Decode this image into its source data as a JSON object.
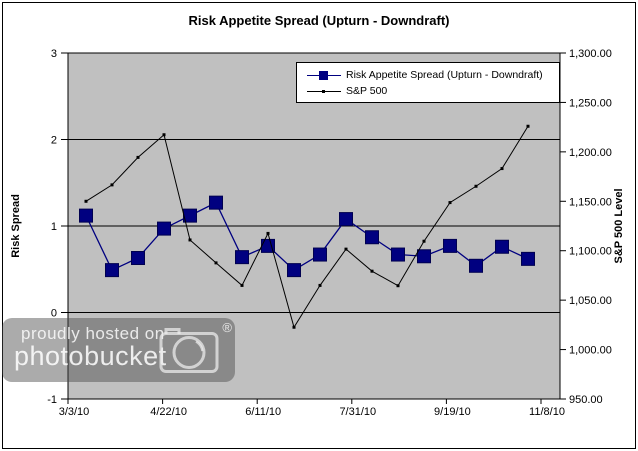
{
  "figure": {
    "title": "Risk Appetite Spread (Upturn - Downdraft)"
  },
  "chart_data": {
    "type": "line",
    "title": "Risk Appetite Spread (Upturn - Downdraft)",
    "plot_bg": "#C0C0C0",
    "grid": true,
    "x": [
      "3/12/10",
      "3/26/10",
      "4/9/10",
      "4/23/10",
      "5/7/10",
      "5/21/10",
      "6/4/10",
      "6/18/10",
      "7/2/10",
      "7/16/10",
      "7/30/10",
      "8/13/10",
      "8/27/10",
      "9/10/10",
      "9/24/10",
      "10/8/10",
      "10/22/10",
      "11/5/10"
    ],
    "series": [
      {
        "name": "Risk Appetite Spread (Upturn - Downdraft)",
        "axis": "left",
        "color": "#000080",
        "marker": "square",
        "values": [
          1.12,
          0.49,
          0.63,
          0.97,
          1.12,
          1.27,
          0.64,
          0.77,
          0.49,
          0.67,
          1.08,
          0.87,
          0.67,
          0.65,
          0.77,
          0.54,
          0.76,
          0.62
        ]
      },
      {
        "name": "S&P 500",
        "axis": "right",
        "color": "#000000",
        "marker": "dot",
        "values": [
          1150.0,
          1166.6,
          1194.4,
          1217.3,
          1110.9,
          1087.7,
          1064.9,
          1117.5,
          1022.6,
          1064.9,
          1101.6,
          1079.3,
          1064.6,
          1109.6,
          1148.7,
          1165.2,
          1183.1,
          1225.9
        ]
      }
    ],
    "left_axis": {
      "label": "Risk Spread",
      "min": -1,
      "max": 3,
      "ticks": [
        "3",
        "2",
        "1",
        "0",
        "-1"
      ]
    },
    "right_axis": {
      "label": "S&P 500 Level",
      "min": 950,
      "max": 1300,
      "ticks": [
        "1,300.00",
        "1,250.00",
        "1,200.00",
        "1,150.00",
        "1,100.00",
        "1,050.00",
        "1,000.00",
        "950.00"
      ]
    },
    "x_axis": {
      "tick_labels": [
        "3/3/10",
        "4/22/10",
        "6/11/10",
        "7/31/10",
        "9/19/10",
        "11/8/10"
      ]
    },
    "legend_position": "top-right"
  },
  "watermark": {
    "line1": "proudly hosted on",
    "line2": "photobucket",
    "registered": "®",
    "icon": "camera-icon"
  }
}
